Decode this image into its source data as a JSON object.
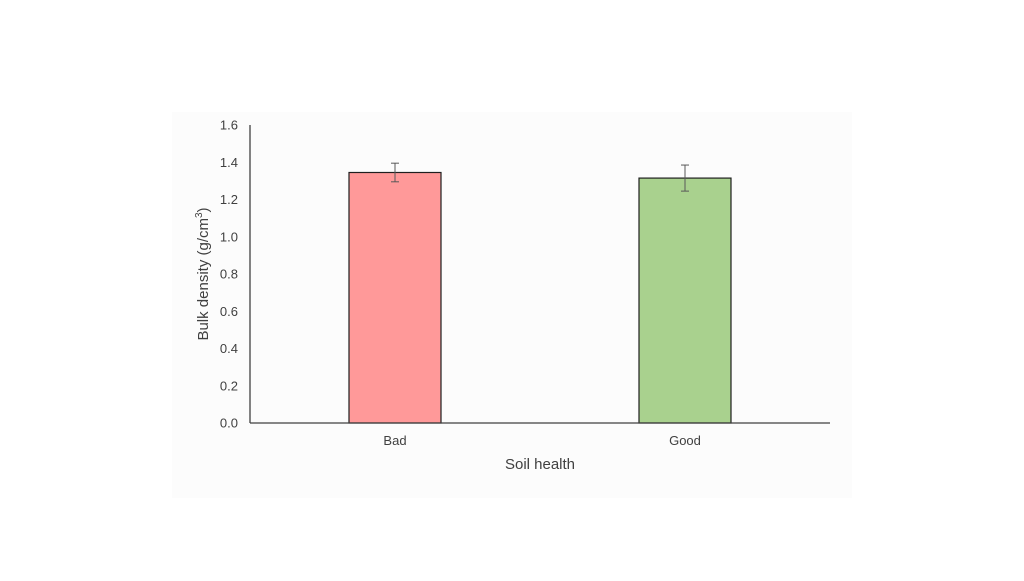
{
  "chart_data": {
    "type": "bar",
    "categories": [
      "Bad",
      "Good"
    ],
    "values": [
      1.345,
      1.315
    ],
    "errors": [
      0.05,
      0.07
    ],
    "colors": [
      "#ff9999",
      "#a9d18e"
    ],
    "xlabel": "Soil health",
    "ylabel_main": "Bulk density (g/cm",
    "ylabel_sup": "3",
    "ylabel_tail": ")",
    "ylim": [
      0,
      1.6
    ],
    "yticks": [
      "0.0",
      "0.2",
      "0.4",
      "0.6",
      "0.8",
      "1.0",
      "1.2",
      "1.4",
      "1.6"
    ],
    "grid": false,
    "legend": "none"
  }
}
